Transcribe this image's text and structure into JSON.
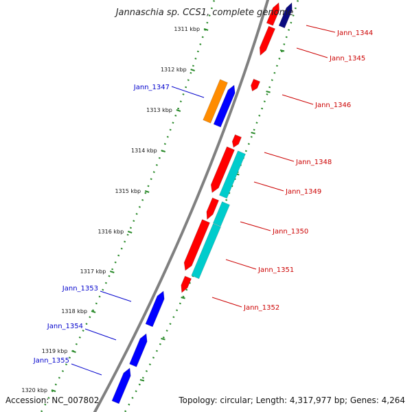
{
  "title": "Jannaschia sp. CCS1, complete genome",
  "footer": {
    "accession": "Accession: NC_007802",
    "summary": "Topology: circular; Length: 4,317,977 bp; Genes: 4,264"
  },
  "colors": {
    "forward_gene": "#ff0000",
    "reverse_gene": "#0000ff",
    "orange_gene": "#ff8c00",
    "cyan_gene": "#00cccc",
    "navy_gene": "#0a0a80",
    "backbone": "#808080",
    "tick": "#2a8a2a",
    "forward_label": "#cc0000",
    "reverse_label": "#0000cc"
  },
  "scale_ticks": [
    {
      "label": "1311 kbp"
    },
    {
      "label": "1312 kbp"
    },
    {
      "label": "1313 kbp"
    },
    {
      "label": "1314 kbp"
    },
    {
      "label": "1315 kbp"
    },
    {
      "label": "1316 kbp"
    },
    {
      "label": "1317 kbp"
    },
    {
      "label": "1318 kbp"
    },
    {
      "label": "1319 kbp"
    },
    {
      "label": "1320 kbp"
    }
  ],
  "genes": [
    {
      "name": "Jann_1344",
      "strand": "forward",
      "color": "forward"
    },
    {
      "name": "Jann_1345",
      "strand": "forward",
      "color": "forward"
    },
    {
      "name": "Jann_1346",
      "strand": "forward",
      "color": "forward"
    },
    {
      "name": "Jann_1347",
      "strand": "reverse",
      "color": "reverse"
    },
    {
      "name": "Jann_1348",
      "strand": "forward",
      "color": "forward"
    },
    {
      "name": "Jann_1349",
      "strand": "forward",
      "color": "forward"
    },
    {
      "name": "Jann_1350",
      "strand": "forward",
      "color": "forward"
    },
    {
      "name": "Jann_1351",
      "strand": "forward",
      "color": "forward"
    },
    {
      "name": "Jann_1352",
      "strand": "forward",
      "color": "forward"
    },
    {
      "name": "Jann_1353",
      "strand": "reverse",
      "color": "reverse"
    },
    {
      "name": "Jann_1354",
      "strand": "reverse",
      "color": "reverse"
    },
    {
      "name": "Jann_1355",
      "strand": "reverse",
      "color": "reverse"
    }
  ]
}
